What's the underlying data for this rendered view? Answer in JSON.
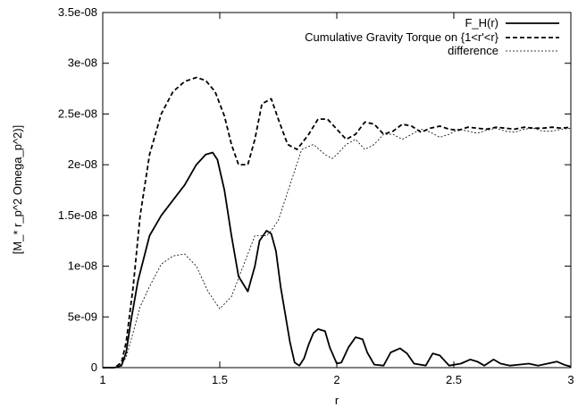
{
  "chart_data": {
    "type": "line",
    "title": "",
    "xlabel": "r",
    "ylabel": "[M_* r_p^2 Omega_p^2)]",
    "xlim": [
      1,
      3
    ],
    "ylim": [
      0,
      3.5e-08
    ],
    "grid": false,
    "legend_position": "top-right",
    "x_ticks": [
      1,
      1.5,
      2,
      2.5,
      3
    ],
    "x_tick_labels": [
      "1",
      "1.5",
      "2",
      "2.5",
      "3"
    ],
    "y_ticks": [
      0,
      5e-09,
      1e-08,
      1.5e-08,
      2e-08,
      2.5e-08,
      3e-08,
      3.5e-08
    ],
    "y_tick_labels": [
      "0",
      "5e-09",
      "1e-08",
      "1.5e-08",
      "2e-08",
      "2.5e-08",
      "3e-08",
      "3.5e-08"
    ],
    "series": [
      {
        "name": "F_H(r)",
        "style": "solid",
        "x": [
          1.0,
          1.05,
          1.08,
          1.1,
          1.12,
          1.15,
          1.2,
          1.25,
          1.3,
          1.35,
          1.4,
          1.44,
          1.47,
          1.49,
          1.52,
          1.55,
          1.58,
          1.62,
          1.65,
          1.67,
          1.7,
          1.72,
          1.74,
          1.76,
          1.8,
          1.82,
          1.84,
          1.86,
          1.88,
          1.9,
          1.92,
          1.95,
          1.97,
          2.0,
          2.02,
          2.05,
          2.08,
          2.11,
          2.13,
          2.16,
          2.2,
          2.23,
          2.27,
          2.3,
          2.33,
          2.38,
          2.41,
          2.44,
          2.48,
          2.53,
          2.57,
          2.6,
          2.63,
          2.67,
          2.7,
          2.74,
          2.78,
          2.82,
          2.86,
          2.9,
          2.94,
          2.97,
          3.0
        ],
        "y": [
          0,
          0,
          2e-10,
          1.5e-09,
          4.5e-09,
          8.5e-09,
          1.3e-08,
          1.5e-08,
          1.65e-08,
          1.8e-08,
          2e-08,
          2.1e-08,
          2.12e-08,
          2.05e-08,
          1.75e-08,
          1.3e-08,
          9e-09,
          7.5e-09,
          1e-08,
          1.25e-08,
          1.35e-08,
          1.32e-08,
          1.15e-08,
          8e-09,
          2.5e-09,
          5e-10,
          2e-10,
          9e-10,
          2.3e-09,
          3.4e-09,
          3.8e-09,
          3.6e-09,
          2e-09,
          4e-10,
          5e-10,
          2e-09,
          3e-09,
          2.8e-09,
          1.5e-09,
          3e-10,
          2e-10,
          1.5e-09,
          1.9e-09,
          1.4e-09,
          4e-10,
          2e-10,
          1.4e-09,
          1.2e-09,
          2e-10,
          4e-10,
          8e-10,
          6e-10,
          2e-10,
          8e-10,
          4e-10,
          2e-10,
          3e-10,
          4e-10,
          2e-10,
          4e-10,
          6e-10,
          3e-10,
          1e-10
        ]
      },
      {
        "name": "Cumulative Gravity Torque on {1<r'<r}",
        "style": "dashed",
        "x": [
          1.0,
          1.05,
          1.08,
          1.1,
          1.13,
          1.16,
          1.2,
          1.25,
          1.3,
          1.35,
          1.4,
          1.44,
          1.48,
          1.52,
          1.55,
          1.58,
          1.62,
          1.65,
          1.68,
          1.72,
          1.75,
          1.79,
          1.83,
          1.88,
          1.92,
          1.96,
          2.0,
          2.04,
          2.08,
          2.12,
          2.16,
          2.2,
          2.24,
          2.28,
          2.32,
          2.36,
          2.4,
          2.44,
          2.48,
          2.52,
          2.56,
          2.6,
          2.64,
          2.68,
          2.72,
          2.76,
          2.8,
          2.84,
          2.88,
          2.92,
          2.96,
          3.0
        ],
        "y": [
          0,
          0,
          5e-10,
          2.5e-09,
          8e-09,
          1.5e-08,
          2.1e-08,
          2.5e-08,
          2.72e-08,
          2.82e-08,
          2.86e-08,
          2.83e-08,
          2.72e-08,
          2.48e-08,
          2.2e-08,
          2e-08,
          2e-08,
          2.25e-08,
          2.6e-08,
          2.65e-08,
          2.45e-08,
          2.2e-08,
          2.15e-08,
          2.3e-08,
          2.45e-08,
          2.45e-08,
          2.35e-08,
          2.25e-08,
          2.3e-08,
          2.42e-08,
          2.4e-08,
          2.3e-08,
          2.33e-08,
          2.4e-08,
          2.38e-08,
          2.32e-08,
          2.36e-08,
          2.38e-08,
          2.35e-08,
          2.34e-08,
          2.37e-08,
          2.36e-08,
          2.35e-08,
          2.37e-08,
          2.36e-08,
          2.35e-08,
          2.37e-08,
          2.36e-08,
          2.36e-08,
          2.37e-08,
          2.36e-08,
          2.37e-08
        ]
      },
      {
        "name": "difference",
        "style": "dotted",
        "x": [
          1.0,
          1.05,
          1.08,
          1.1,
          1.13,
          1.16,
          1.2,
          1.25,
          1.3,
          1.35,
          1.4,
          1.45,
          1.5,
          1.55,
          1.6,
          1.65,
          1.7,
          1.72,
          1.75,
          1.8,
          1.85,
          1.9,
          1.95,
          1.98,
          2.0,
          2.04,
          2.08,
          2.12,
          2.16,
          2.2,
          2.24,
          2.28,
          2.32,
          2.36,
          2.4,
          2.44,
          2.48,
          2.52,
          2.56,
          2.6,
          2.64,
          2.68,
          2.72,
          2.76,
          2.8,
          2.84,
          2.88,
          2.92,
          2.96,
          3.0
        ],
        "y": [
          0,
          0,
          3e-10,
          1e-09,
          3.5e-09,
          6e-09,
          8e-09,
          1.02e-08,
          1.1e-08,
          1.12e-08,
          1e-08,
          7.5e-09,
          5.8e-09,
          7e-09,
          1e-08,
          1.3e-08,
          1.3e-08,
          1.35e-08,
          1.45e-08,
          1.8e-08,
          2.15e-08,
          2.2e-08,
          2.1e-08,
          2.06e-08,
          2.1e-08,
          2.2e-08,
          2.25e-08,
          2.15e-08,
          2.2e-08,
          2.3e-08,
          2.3e-08,
          2.25e-08,
          2.3e-08,
          2.35e-08,
          2.32e-08,
          2.27e-08,
          2.3e-08,
          2.35e-08,
          2.33e-08,
          2.31e-08,
          2.34e-08,
          2.36e-08,
          2.33e-08,
          2.32e-08,
          2.35e-08,
          2.36e-08,
          2.33e-08,
          2.33e-08,
          2.35e-08,
          2.36e-08
        ]
      }
    ]
  }
}
